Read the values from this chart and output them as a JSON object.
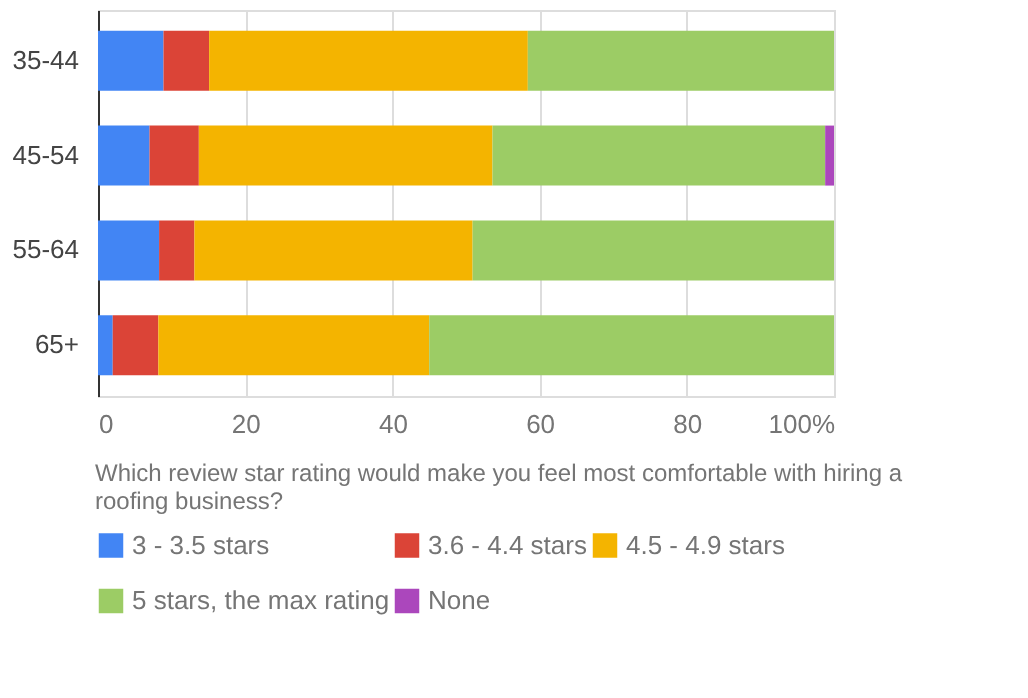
{
  "chart_data": {
    "type": "bar",
    "orientation": "horizontal",
    "stacked": true,
    "xlabel": "Which review star rating would make you feel most comfortable with hiring a roofing business?",
    "categories": [
      "35-44",
      "45-54",
      "55-64",
      "65+"
    ],
    "series": [
      {
        "name": "3 - 3.5 stars",
        "color": "#4285f4",
        "values": [
          8.9,
          7.0,
          8.3,
          2.0
        ]
      },
      {
        "name": "3.6 - 4.4 stars",
        "color": "#db4437",
        "values": [
          6.2,
          6.7,
          4.8,
          6.2
        ]
      },
      {
        "name": "4.5 - 4.9 stars",
        "color": "#f4b400",
        "values": [
          43.3,
          39.9,
          37.8,
          36.8
        ]
      },
      {
        "name": "5 stars, the max rating",
        "color": "#9ccc65",
        "values": [
          41.6,
          45.2,
          49.1,
          55.0
        ]
      },
      {
        "name": "None",
        "color": "#ab47bc",
        "values": [
          0,
          1.2,
          0,
          0
        ]
      }
    ],
    "xlim": [
      0,
      100
    ],
    "xticks": [
      0,
      20,
      40,
      60,
      80,
      {
        "value": 100,
        "label": "100%"
      }
    ],
    "grid": "x",
    "legend": "bottom"
  }
}
